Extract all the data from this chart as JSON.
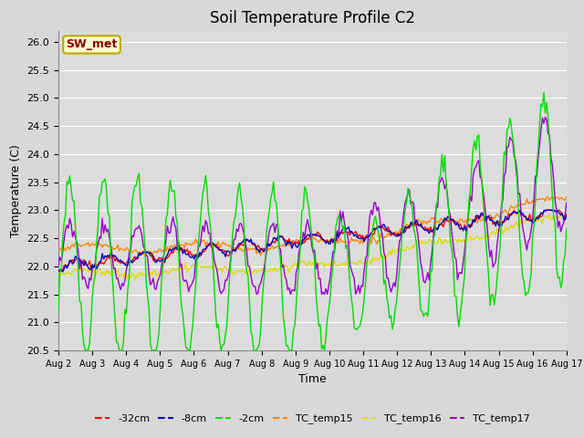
{
  "title": "Soil Temperature Profile C2",
  "xlabel": "Time",
  "ylabel": "Temperature (C)",
  "ylim": [
    20.5,
    26.2
  ],
  "xlim": [
    0,
    15
  ],
  "xtick_labels": [
    "Aug 2",
    "Aug 3",
    "Aug 4",
    "Aug 5",
    "Aug 6",
    "Aug 7",
    "Aug 8",
    "Aug 9",
    "Aug 10",
    "Aug 11",
    "Aug 12",
    "Aug 13",
    "Aug 14",
    "Aug 15",
    "Aug 16",
    "Aug 17"
  ],
  "colors": {
    "-32cm": "#ff0000",
    "-8cm": "#0000bb",
    "-2cm": "#00dd00",
    "TC_temp15": "#ff8800",
    "TC_temp16": "#dddd00",
    "TC_temp17": "#9900cc"
  },
  "annotation_text": "SW_met",
  "annotation_bg": "#ffffcc",
  "annotation_border": "#bbaa00",
  "annotation_text_color": "#880000",
  "fig_bg": "#d8d8d8",
  "plot_bg": "#dcdcdc",
  "title_fontsize": 12,
  "grid_color": "#ffffff"
}
